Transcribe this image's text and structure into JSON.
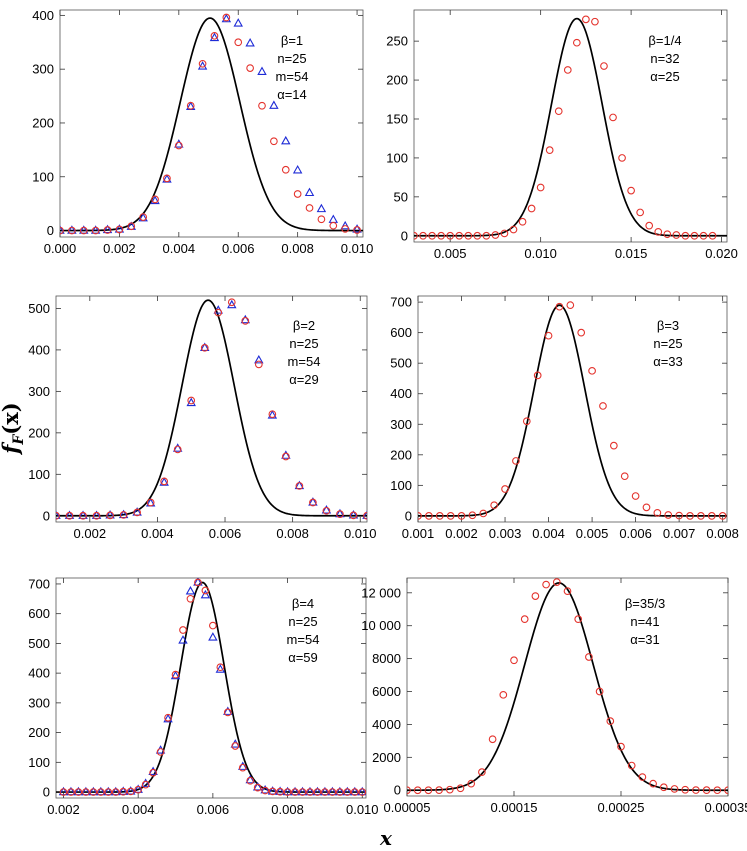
{
  "figure": {
    "x_axis_title": "x",
    "y_axis_title": "f",
    "y_axis_subscript": "F",
    "y_axis_arg": "(x)"
  },
  "colors": {
    "curve": "#000000",
    "circle_marker": "#e4332d",
    "triangle_marker": "#1e2bd6"
  },
  "chart_data": [
    {
      "type": "line",
      "panel": "top-left",
      "params": [
        "β=1",
        "n=25",
        "m=54",
        "α=14"
      ],
      "xlim": [
        0.0,
        0.0102
      ],
      "ylim": [
        -12,
        410
      ],
      "xticks": [
        0.0,
        0.002,
        0.004,
        0.006,
        0.008,
        0.01
      ],
      "xtick_labels": [
        "0.000",
        "0.002",
        "0.004",
        "0.006",
        "0.008",
        "0.010"
      ],
      "yticks": [
        0,
        100,
        200,
        300,
        400
      ],
      "ytick_labels": [
        "0",
        "100",
        "200",
        "300",
        "400"
      ],
      "series": [
        {
          "name": "theory",
          "kind": "curve",
          "mu": 0.00505,
          "sigma": 0.001,
          "peak": 395
        },
        {
          "name": "simulation-circles",
          "kind": "circle",
          "x": [
            0.0,
            0.0004,
            0.0008,
            0.0012,
            0.0016,
            0.002,
            0.0024,
            0.0028,
            0.0032,
            0.0036,
            0.004,
            0.0044,
            0.0048,
            0.0052,
            0.0056,
            0.006,
            0.0064,
            0.0068,
            0.0072,
            0.0076,
            0.008,
            0.0084,
            0.0088,
            0.0092,
            0.0096,
            0.01
          ],
          "y": [
            0,
            0,
            0,
            0,
            1,
            2,
            8,
            25,
            58,
            97,
            158,
            232,
            310,
            362,
            396,
            350,
            302,
            232,
            166,
            113,
            68,
            42,
            21,
            9,
            3,
            1
          ]
        },
        {
          "name": "simulation-triangles",
          "kind": "triangle",
          "x": [
            0.0,
            0.0004,
            0.0008,
            0.0012,
            0.0016,
            0.002,
            0.0024,
            0.0028,
            0.0032,
            0.0036,
            0.004,
            0.0044,
            0.0048,
            0.0052,
            0.0056,
            0.006,
            0.0064,
            0.0068,
            0.0072,
            0.0076,
            0.008,
            0.0084,
            0.0088,
            0.0092,
            0.0096,
            0.01
          ],
          "y": [
            0,
            0,
            0,
            0,
            1,
            2,
            7,
            23,
            55,
            95,
            160,
            230,
            305,
            358,
            393,
            385,
            348,
            295,
            232,
            166,
            112,
            70,
            40,
            20,
            8,
            2
          ]
        }
      ]
    },
    {
      "type": "line",
      "panel": "top-right",
      "params": [
        "β=1/4",
        "n=32",
        "α=25"
      ],
      "xlim": [
        0.003,
        0.0203
      ],
      "ylim": [
        -8,
        290
      ],
      "xticks": [
        0.005,
        0.01,
        0.015,
        0.02
      ],
      "xtick_labels": [
        "0.005",
        "0.010",
        "0.015",
        "0.020"
      ],
      "yticks": [
        0,
        50,
        100,
        150,
        200,
        250
      ],
      "ytick_labels": [
        "0",
        "50",
        "100",
        "150",
        "200",
        "250"
      ],
      "series": [
        {
          "name": "theory",
          "kind": "curve",
          "mu": 0.012,
          "sigma": 0.0014,
          "peak": 279
        },
        {
          "name": "simulation-circles",
          "kind": "circle",
          "x": [
            0.003,
            0.0035,
            0.004,
            0.0045,
            0.005,
            0.0055,
            0.006,
            0.0065,
            0.007,
            0.0075,
            0.008,
            0.0085,
            0.009,
            0.0095,
            0.01,
            0.0105,
            0.011,
            0.0115,
            0.012,
            0.0125,
            0.013,
            0.0135,
            0.014,
            0.0145,
            0.015,
            0.0155,
            0.016,
            0.0165,
            0.017,
            0.0175,
            0.018,
            0.0185,
            0.019,
            0.0195
          ],
          "y": [
            0,
            0,
            0,
            0,
            0,
            0,
            0,
            0,
            0,
            1,
            3,
            8,
            18,
            35,
            62,
            110,
            160,
            213,
            248,
            278,
            275,
            218,
            152,
            100,
            58,
            30,
            13,
            5,
            2,
            1,
            0,
            0,
            0,
            0
          ]
        }
      ]
    },
    {
      "type": "line",
      "panel": "middle-left",
      "params": [
        "β=2",
        "n=25",
        "m=54",
        "α=29"
      ],
      "xlim": [
        0.001,
        0.0102
      ],
      "ylim": [
        -15,
        530
      ],
      "xticks": [
        0.002,
        0.004,
        0.006,
        0.008,
        0.01
      ],
      "xtick_labels": [
        "0.002",
        "0.004",
        "0.006",
        "0.008",
        "0.010"
      ],
      "yticks": [
        0,
        100,
        200,
        300,
        400,
        500
      ],
      "ytick_labels": [
        "0",
        "100",
        "200",
        "300",
        "400",
        "500"
      ],
      "series": [
        {
          "name": "theory",
          "kind": "curve",
          "mu": 0.0055,
          "sigma": 0.00077,
          "peak": 520
        },
        {
          "name": "simulation-circles",
          "kind": "circle",
          "x": [
            0.001,
            0.0014,
            0.0018,
            0.0022,
            0.0026,
            0.003,
            0.0034,
            0.0038,
            0.0042,
            0.0046,
            0.005,
            0.0054,
            0.0058,
            0.0062,
            0.0066,
            0.007,
            0.0074,
            0.0078,
            0.0082,
            0.0086,
            0.009,
            0.0094,
            0.0098,
            0.0102
          ],
          "y": [
            0,
            0,
            0,
            0,
            1,
            2,
            8,
            32,
            83,
            160,
            278,
            405,
            490,
            515,
            470,
            365,
            245,
            143,
            72,
            32,
            12,
            4,
            1,
            0
          ]
        },
        {
          "name": "simulation-triangles",
          "kind": "triangle",
          "x": [
            0.001,
            0.0014,
            0.0018,
            0.0022,
            0.0026,
            0.003,
            0.0034,
            0.0038,
            0.0042,
            0.0046,
            0.005,
            0.0054,
            0.0058,
            0.0062,
            0.0066,
            0.007,
            0.0074,
            0.0078,
            0.0082,
            0.0086,
            0.009,
            0.0094,
            0.0098,
            0.0102
          ],
          "y": [
            0,
            0,
            0,
            0,
            1,
            2,
            8,
            30,
            80,
            162,
            272,
            405,
            495,
            508,
            472,
            375,
            242,
            145,
            72,
            32,
            13,
            4,
            1,
            0
          ]
        }
      ]
    },
    {
      "type": "line",
      "panel": "middle-right",
      "params": [
        "β=3",
        "n=25",
        "α=33"
      ],
      "xlim": [
        0.001,
        0.0081
      ],
      "ylim": [
        -20,
        720
      ],
      "xticks": [
        0.001,
        0.002,
        0.003,
        0.004,
        0.005,
        0.006,
        0.007,
        0.008
      ],
      "xtick_labels": [
        "0.001",
        "0.002",
        "0.003",
        "0.004",
        "0.005",
        "0.006",
        "0.007",
        "0.008"
      ],
      "yticks": [
        0,
        100,
        200,
        300,
        400,
        500,
        600,
        700
      ],
      "ytick_labels": [
        "0",
        "100",
        "200",
        "300",
        "400",
        "500",
        "600",
        "700"
      ],
      "series": [
        {
          "name": "theory",
          "kind": "curve",
          "mu": 0.00425,
          "sigma": 0.00058,
          "peak": 690
        },
        {
          "name": "simulation-circles",
          "kind": "circle",
          "x": [
            0.001,
            0.00125,
            0.0015,
            0.00175,
            0.002,
            0.00225,
            0.0025,
            0.00275,
            0.003,
            0.00325,
            0.0035,
            0.00375,
            0.004,
            0.00425,
            0.0045,
            0.00475,
            0.005,
            0.00525,
            0.0055,
            0.00575,
            0.006,
            0.00625,
            0.0065,
            0.00675,
            0.007,
            0.00725,
            0.0075,
            0.00775,
            0.008
          ],
          "y": [
            0,
            0,
            0,
            0,
            0,
            2,
            8,
            35,
            88,
            180,
            310,
            460,
            590,
            685,
            690,
            600,
            475,
            360,
            230,
            130,
            65,
            28,
            10,
            3,
            1,
            0,
            0,
            0,
            0
          ]
        }
      ]
    },
    {
      "type": "line",
      "panel": "bottom-left",
      "params": [
        "β=4",
        "n=25",
        "m=54",
        "α=59"
      ],
      "xlim": [
        0.0018,
        0.0101
      ],
      "ylim": [
        -20,
        720
      ],
      "xticks": [
        0.002,
        0.004,
        0.006,
        0.008,
        0.01
      ],
      "xtick_labels": [
        "0.002",
        "0.004",
        "0.006",
        "0.008",
        "0.010"
      ],
      "yticks": [
        0,
        100,
        200,
        300,
        400,
        500,
        600,
        700
      ],
      "ytick_labels": [
        "0",
        "100",
        "200",
        "300",
        "400",
        "500",
        "600",
        "700"
      ],
      "series": [
        {
          "name": "theory",
          "kind": "curve",
          "mu": 0.00572,
          "sigma": 0.00058,
          "peak": 705
        },
        {
          "name": "simulation-circles",
          "kind": "circle",
          "x": [
            0.002,
            0.0022,
            0.0024,
            0.0026,
            0.0028,
            0.003,
            0.0032,
            0.0034,
            0.0036,
            0.0038,
            0.004,
            0.0042,
            0.0044,
            0.0046,
            0.0048,
            0.005,
            0.0052,
            0.0054,
            0.0056,
            0.0058,
            0.006,
            0.0062,
            0.0064,
            0.0066,
            0.0068,
            0.007,
            0.0072,
            0.0074,
            0.0076,
            0.0078,
            0.008,
            0.0082,
            0.0084,
            0.0086,
            0.0088,
            0.009,
            0.0092,
            0.0094,
            0.0096,
            0.0098,
            0.01
          ],
          "y": [
            0,
            0,
            0,
            0,
            0,
            0,
            0,
            0,
            1,
            2,
            8,
            25,
            65,
            135,
            250,
            395,
            545,
            650,
            705,
            678,
            560,
            420,
            268,
            155,
            82,
            38,
            15,
            5,
            2,
            1,
            0,
            0,
            0,
            0,
            0,
            0,
            0,
            0,
            0,
            0,
            0
          ]
        },
        {
          "name": "simulation-triangles",
          "kind": "triangle",
          "x": [
            0.002,
            0.0022,
            0.0024,
            0.0026,
            0.0028,
            0.003,
            0.0032,
            0.0034,
            0.0036,
            0.0038,
            0.004,
            0.0042,
            0.0044,
            0.0046,
            0.0048,
            0.005,
            0.0052,
            0.0054,
            0.0056,
            0.0058,
            0.006,
            0.0062,
            0.0064,
            0.0066,
            0.0068,
            0.007,
            0.0072,
            0.0074,
            0.0076,
            0.0078,
            0.008,
            0.0082,
            0.0084,
            0.0086,
            0.0088,
            0.009,
            0.0092,
            0.0094,
            0.0096,
            0.0098,
            0.01
          ],
          "y": [
            0,
            0,
            0,
            0,
            0,
            0,
            0,
            0,
            1,
            2,
            8,
            28,
            68,
            140,
            245,
            390,
            510,
            675,
            705,
            662,
            520,
            412,
            270,
            160,
            85,
            40,
            16,
            6,
            2,
            1,
            0,
            0,
            0,
            0,
            0,
            0,
            0,
            0,
            0,
            0,
            0
          ]
        }
      ]
    },
    {
      "type": "line",
      "panel": "bottom-right",
      "params": [
        "β=35/3",
        "n=41",
        "α=31"
      ],
      "xlim": [
        5e-05,
        0.00035
      ],
      "ylim": [
        -350,
        12900
      ],
      "xticks": [
        5e-05,
        0.00015,
        0.00025,
        0.00035
      ],
      "xtick_labels": [
        "0.00005",
        "0.00015",
        "0.00025",
        "0.00035"
      ],
      "yticks": [
        0,
        2000,
        4000,
        6000,
        8000,
        10000,
        12000
      ],
      "ytick_labels": [
        "0",
        "2000",
        "4000",
        "6000",
        "8000",
        "10 000",
        "12 000"
      ],
      "series": [
        {
          "name": "theory",
          "kind": "curve",
          "mu": 0.000192,
          "sigma": 3.2e-05,
          "peak": 12600
        },
        {
          "name": "simulation-circles",
          "kind": "circle",
          "x": [
            5e-05,
            6e-05,
            7e-05,
            8e-05,
            9e-05,
            0.0001,
            0.00011,
            0.00012,
            0.00013,
            0.00014,
            0.00015,
            0.00016,
            0.00017,
            0.00018,
            0.00019,
            0.0002,
            0.00021,
            0.00022,
            0.00023,
            0.00024,
            0.00025,
            0.00026,
            0.00027,
            0.00028,
            0.00029,
            0.0003,
            0.00031,
            0.00032,
            0.00033,
            0.00034,
            0.00035
          ],
          "y": [
            0,
            0,
            0,
            5,
            35,
            120,
            400,
            1100,
            3100,
            5800,
            7900,
            10400,
            11800,
            12500,
            12650,
            12100,
            10400,
            8100,
            6000,
            4200,
            2650,
            1500,
            800,
            400,
            180,
            80,
            30,
            10,
            5,
            2,
            0
          ]
        }
      ]
    }
  ]
}
